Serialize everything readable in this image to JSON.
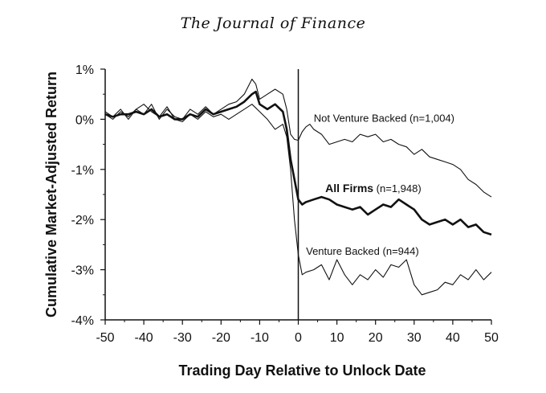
{
  "header": {
    "journal": "The Journal of Finance"
  },
  "chart_data": {
    "type": "line",
    "title": "",
    "xlabel": "Trading Day Relative to Unlock Date",
    "ylabel": "Cumulative Market-Adjusted Return",
    "xlim": [
      -50,
      50
    ],
    "ylim": [
      -4,
      1
    ],
    "x_ticks": [
      -50,
      -40,
      -30,
      -20,
      -10,
      0,
      10,
      20,
      30,
      40,
      50
    ],
    "x_tick_labels": [
      "-50",
      "-40",
      "-30",
      "-20",
      "-10",
      "0",
      "10",
      "20",
      "30",
      "40",
      "50"
    ],
    "y_ticks": [
      1,
      0,
      -1,
      -2,
      -3,
      -4
    ],
    "y_tick_labels": [
      "1%",
      "0%",
      "-1%",
      "-2%",
      "-3%",
      "-4%"
    ],
    "vline_x": 0,
    "annotations": [
      {
        "text": "Not Venture Backed (n=1,004)",
        "x": 4,
        "y": -0.05,
        "bold_part": ""
      },
      {
        "text_bold": "All Firms",
        "text_rest": " (n=1,948)",
        "x": 7,
        "y": -1.45
      },
      {
        "text": "Venture Backed (n=944)",
        "x": 2,
        "y": -2.7,
        "bold_part": ""
      }
    ],
    "series": [
      {
        "name": "Not Venture Backed",
        "weight": "thin",
        "x": [
          -50,
          -48,
          -46,
          -44,
          -42,
          -40,
          -38,
          -36,
          -34,
          -32,
          -30,
          -28,
          -26,
          -24,
          -22,
          -20,
          -18,
          -16,
          -14,
          -12,
          -11,
          -10,
          -8,
          -6,
          -4,
          -3,
          -2,
          -1,
          0,
          1,
          2,
          3,
          4,
          6,
          8,
          10,
          12,
          14,
          16,
          18,
          20,
          22,
          24,
          26,
          28,
          30,
          32,
          34,
          36,
          38,
          40,
          42,
          44,
          46,
          48,
          50
        ],
        "values": [
          0.1,
          0.0,
          0.15,
          0.05,
          0.2,
          0.1,
          0.3,
          0.0,
          0.2,
          0.05,
          0.0,
          0.2,
          0.1,
          0.25,
          0.1,
          0.2,
          0.3,
          0.35,
          0.5,
          0.8,
          0.7,
          0.4,
          0.5,
          0.6,
          0.5,
          0.2,
          -0.3,
          -0.4,
          -0.42,
          -0.25,
          -0.15,
          -0.1,
          -0.2,
          -0.3,
          -0.5,
          -0.45,
          -0.4,
          -0.45,
          -0.3,
          -0.35,
          -0.3,
          -0.45,
          -0.4,
          -0.5,
          -0.55,
          -0.7,
          -0.6,
          -0.75,
          -0.8,
          -0.85,
          -0.9,
          -1.0,
          -1.2,
          -1.3,
          -1.45,
          -1.55
        ]
      },
      {
        "name": "All Firms",
        "weight": "bold",
        "x": [
          -50,
          -48,
          -46,
          -44,
          -42,
          -40,
          -38,
          -36,
          -34,
          -32,
          -30,
          -28,
          -26,
          -24,
          -22,
          -20,
          -18,
          -16,
          -14,
          -12,
          -11,
          -10,
          -8,
          -6,
          -4,
          -3,
          -2,
          -1,
          0,
          1,
          2,
          4,
          6,
          8,
          10,
          12,
          14,
          16,
          18,
          20,
          22,
          24,
          26,
          28,
          30,
          32,
          34,
          36,
          38,
          40,
          42,
          44,
          46,
          48,
          50
        ],
        "values": [
          0.1,
          0.05,
          0.1,
          0.1,
          0.15,
          0.1,
          0.2,
          0.05,
          0.1,
          0.0,
          0.0,
          0.1,
          0.05,
          0.2,
          0.1,
          0.15,
          0.2,
          0.25,
          0.35,
          0.5,
          0.55,
          0.3,
          0.2,
          0.3,
          0.15,
          -0.2,
          -0.8,
          -1.2,
          -1.6,
          -1.7,
          -1.65,
          -1.6,
          -1.55,
          -1.6,
          -1.7,
          -1.75,
          -1.8,
          -1.75,
          -1.9,
          -1.8,
          -1.7,
          -1.75,
          -1.6,
          -1.7,
          -1.8,
          -2.0,
          -2.1,
          -2.05,
          -2.0,
          -2.1,
          -2.0,
          -2.15,
          -2.1,
          -2.25,
          -2.3
        ]
      },
      {
        "name": "Venture Backed",
        "weight": "thin",
        "x": [
          -50,
          -48,
          -46,
          -44,
          -42,
          -40,
          -38,
          -36,
          -34,
          -32,
          -30,
          -28,
          -26,
          -24,
          -22,
          -20,
          -18,
          -16,
          -14,
          -12,
          -10,
          -8,
          -6,
          -4,
          -3,
          -2,
          -1,
          0,
          1,
          2,
          4,
          6,
          8,
          10,
          12,
          14,
          16,
          18,
          20,
          22,
          24,
          26,
          28,
          30,
          32,
          34,
          36,
          38,
          40,
          42,
          44,
          46,
          48,
          50
        ],
        "values": [
          0.15,
          0.05,
          0.2,
          0.0,
          0.2,
          0.3,
          0.15,
          0.05,
          0.25,
          0.0,
          -0.05,
          0.1,
          0.0,
          0.15,
          0.05,
          0.1,
          0.0,
          0.1,
          0.2,
          0.3,
          0.15,
          0.0,
          -0.2,
          -0.1,
          -0.35,
          -1.0,
          -2.0,
          -2.7,
          -3.1,
          -3.05,
          -3.0,
          -2.9,
          -3.2,
          -2.8,
          -3.1,
          -3.3,
          -3.1,
          -3.2,
          -3.0,
          -3.15,
          -2.9,
          -2.95,
          -2.8,
          -3.3,
          -3.5,
          -3.45,
          -3.4,
          -3.25,
          -3.3,
          -3.1,
          -3.2,
          -3.0,
          -3.2,
          -3.05
        ]
      }
    ]
  }
}
